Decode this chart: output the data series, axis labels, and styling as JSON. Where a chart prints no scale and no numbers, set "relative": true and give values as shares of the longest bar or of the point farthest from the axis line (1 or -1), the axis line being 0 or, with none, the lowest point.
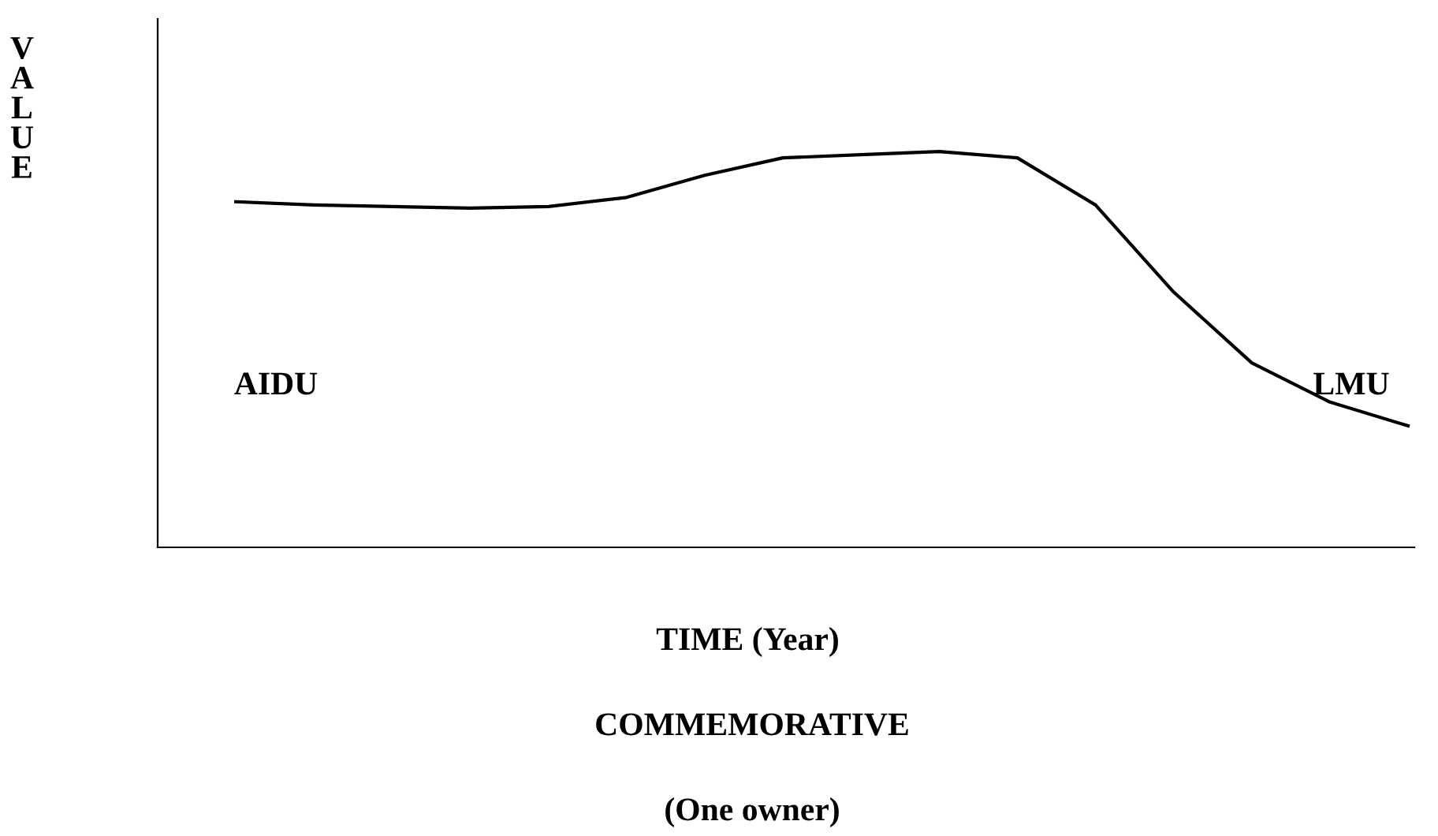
{
  "chart_data": {
    "type": "line",
    "relative": true,
    "ylabel": "VALUE",
    "xlabel": "TIME (Year)",
    "categories": [
      null,
      null,
      null,
      null,
      null,
      null,
      null,
      null,
      null,
      null,
      null,
      null,
      null,
      null,
      null,
      null
    ],
    "series": [
      {
        "color": "#000000",
        "values": [
          0.873,
          0.865,
          0.861,
          0.857,
          0.861,
          0.884,
          0.94,
          0.984,
          0.992,
          1.0,
          0.984,
          0.865,
          0.645,
          0.466,
          0.367,
          0.307
        ]
      }
    ],
    "annotations": [
      "AIDU",
      "LMU",
      "COMMEMORATIVE",
      "(One owner)"
    ],
    "legend": false,
    "marker": "none",
    "line_style": "solid"
  }
}
